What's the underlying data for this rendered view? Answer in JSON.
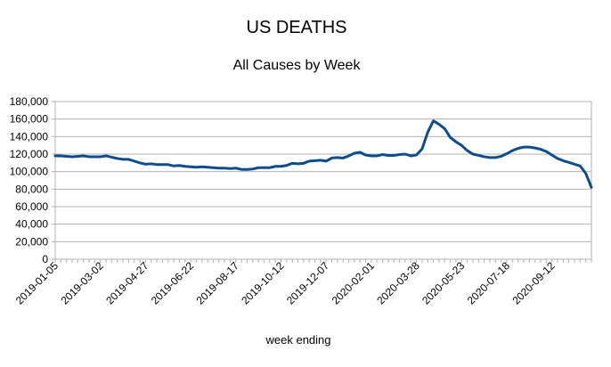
{
  "chart_data": {
    "type": "line",
    "title": "US DEATHS",
    "subtitle": "All Causes by Week",
    "xlabel": "week ending",
    "ylabel": "",
    "ylim": [
      0,
      180000
    ],
    "grid": true,
    "yticks": [
      0,
      20000,
      40000,
      60000,
      80000,
      100000,
      120000,
      140000,
      160000,
      180000
    ],
    "ytick_labels": [
      "0",
      "20,000",
      "40,000",
      "60,000",
      "80,000",
      "100,000",
      "120,000",
      "140,000",
      "160,000",
      "180,000"
    ],
    "x_tick_labels": [
      {
        "index": 0,
        "label": "2019-01-05"
      },
      {
        "index": 8,
        "label": "2019-03-02"
      },
      {
        "index": 16,
        "label": "2019-04-27"
      },
      {
        "index": 24,
        "label": "2019-06-22"
      },
      {
        "index": 32,
        "label": "2019-08-17"
      },
      {
        "index": 40,
        "label": "2019-10-12"
      },
      {
        "index": 48,
        "label": "2019-12-07"
      },
      {
        "index": 56,
        "label": "2020-02-01"
      },
      {
        "index": 64,
        "label": "2020-03-28"
      },
      {
        "index": 72,
        "label": "2020-05-23"
      },
      {
        "index": 80,
        "label": "2020-07-18"
      },
      {
        "index": 88,
        "label": "2020-09-12"
      }
    ],
    "series": [
      {
        "name": "All Causes",
        "color": "#0e4d8c",
        "values": [
          118000,
          118000,
          117500,
          117000,
          117500,
          118000,
          117000,
          117000,
          117000,
          118000,
          116500,
          115000,
          114000,
          114000,
          112000,
          110000,
          108500,
          109000,
          108000,
          108000,
          108000,
          106500,
          107000,
          106000,
          105500,
          105000,
          105500,
          105000,
          104500,
          104000,
          104000,
          103500,
          104000,
          102500,
          102500,
          103000,
          104500,
          104500,
          104500,
          106000,
          106000,
          107000,
          109500,
          109000,
          109500,
          112000,
          112500,
          113000,
          112000,
          115500,
          116000,
          115500,
          118000,
          121000,
          122000,
          119000,
          118000,
          118000,
          119500,
          118500,
          118500,
          119500,
          120000,
          118000,
          119000,
          126000,
          145000,
          158000,
          154000,
          149000,
          139000,
          134000,
          130000,
          124000,
          120000,
          118500,
          117000,
          116000,
          116000,
          117500,
          120500,
          124000,
          126500,
          128000,
          128000,
          127000,
          125500,
          123000,
          119000,
          115000,
          112500,
          110500,
          108500,
          106500,
          98000,
          82000
        ]
      }
    ]
  }
}
